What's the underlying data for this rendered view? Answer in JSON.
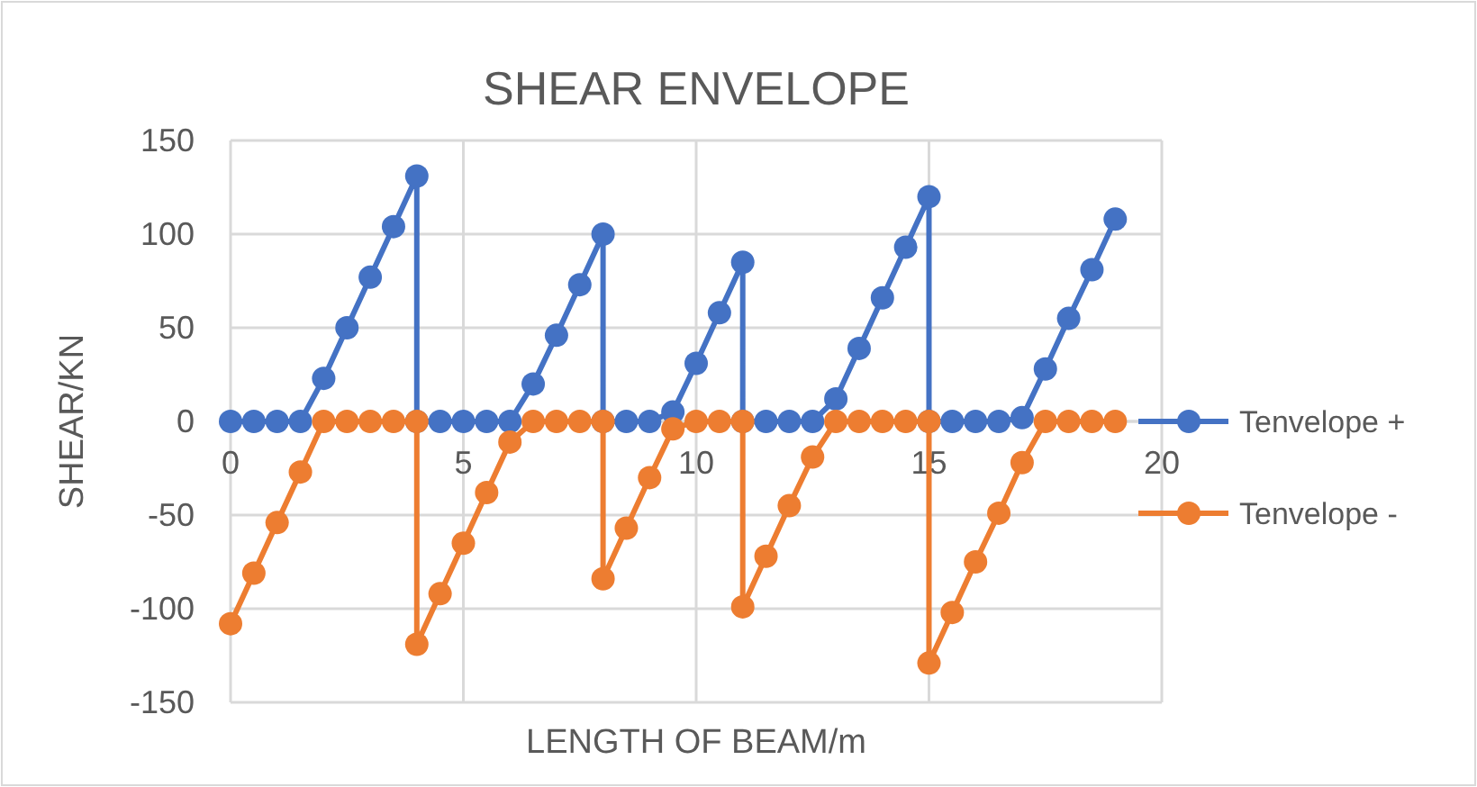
{
  "chart_data": {
    "type": "line",
    "title": "SHEAR ENVELOPE",
    "xlabel": "LENGTH OF BEAM/m",
    "ylabel": "SHEAR/KN",
    "x": [
      0,
      0.5,
      1,
      1.5,
      2,
      2.5,
      3,
      3.5,
      4,
      4,
      4.5,
      5,
      5.5,
      6,
      6.5,
      7,
      7.5,
      8,
      8,
      8.5,
      9,
      9.5,
      10,
      10.5,
      11,
      11,
      11.5,
      12,
      12.5,
      13,
      13.5,
      14,
      14.5,
      15,
      15,
      15.5,
      16,
      16.5,
      17,
      17.5,
      18,
      18.5,
      19
    ],
    "series": [
      {
        "name": "Tenvelope +",
        "color": "#4472c4",
        "values": [
          0,
          0,
          0,
          0,
          23,
          50,
          77,
          104,
          131,
          0,
          0,
          0,
          0,
          0,
          20,
          46,
          73,
          100,
          0,
          0,
          0,
          5,
          31,
          58,
          85,
          0,
          0,
          0,
          0,
          12,
          39,
          66,
          93,
          120,
          0,
          0,
          0,
          0,
          2,
          28,
          55,
          81,
          108
        ]
      },
      {
        "name": "Tenvelope -",
        "color": "#ed7d31",
        "values": [
          -108,
          -81,
          -54,
          -27,
          0,
          0,
          0,
          0,
          0,
          -119,
          -92,
          -65,
          -38,
          -11,
          0,
          0,
          0,
          0,
          -84,
          -57,
          -30,
          -4,
          0,
          0,
          0,
          -99,
          -72,
          -45,
          -19,
          0,
          0,
          0,
          0,
          0,
          -129,
          -102,
          -75,
          -49,
          -22,
          0,
          0,
          0,
          0
        ]
      }
    ],
    "xlim": [
      0,
      20
    ],
    "xticks": [
      0,
      5,
      10,
      15,
      20
    ],
    "ylim": [
      -150,
      150
    ],
    "yticks": [
      -150,
      -100,
      -50,
      0,
      50,
      100,
      150
    ],
    "grid": true,
    "legend": "right",
    "marker": "circle",
    "line_style": "solid"
  }
}
